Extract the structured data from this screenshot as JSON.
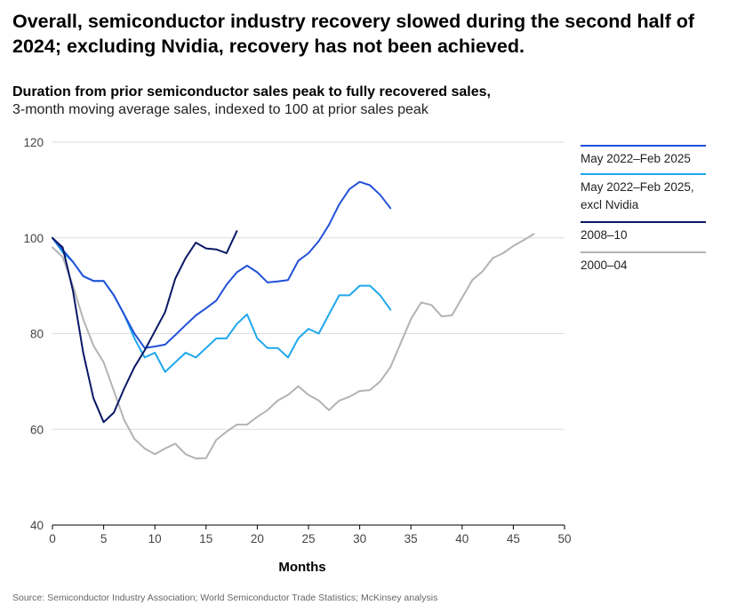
{
  "title": "Overall, semiconductor industry recovery slowed during the second half of 2024; excluding Nvidia, recovery has not been achieved.",
  "subtitle_bold": "Duration from prior semiconductor sales peak to fully recovered sales,",
  "subtitle_normal": "3-month moving average sales, indexed to 100 at prior sales peak",
  "source": "Source: Semiconductor Industry Association; World Semiconductor Trade Statistics; McKinsey analysis",
  "chart_data": {
    "type": "line",
    "title": "Overall, semiconductor industry recovery slowed during the second half of 2024; excluding Nvidia, recovery has not been achieved.",
    "xlabel": "Months",
    "ylabel": "",
    "xlim": [
      0,
      50
    ],
    "ylim": [
      40,
      120
    ],
    "x_ticks": [
      0,
      5,
      10,
      15,
      20,
      25,
      30,
      35,
      40,
      45,
      50
    ],
    "y_ticks": [
      40,
      60,
      80,
      100,
      120
    ],
    "grid": "horizontal",
    "legend_position": "right",
    "series": [
      {
        "name": "May 2022–Feb 2025",
        "color": "#2251d8",
        "x": [
          0,
          1,
          2,
          3,
          4,
          5,
          6,
          7,
          8,
          9,
          10,
          11,
          12,
          13,
          14,
          15,
          16,
          17,
          18,
          19,
          20,
          21,
          22,
          23,
          24,
          25,
          26,
          27,
          28,
          29,
          30,
          31,
          32,
          33
        ],
        "values": [
          100,
          97.5,
          95,
          92,
          91,
          91,
          88,
          84,
          80,
          77,
          77.3,
          77.7,
          79.7,
          81.8,
          83.8,
          85.3,
          86.9,
          90.2,
          92.8,
          94.2,
          92.8,
          90.7,
          90.9,
          91.2,
          95.2,
          96.8,
          99.3,
          102.7,
          107,
          110.2,
          111.7,
          111,
          109,
          106.2
        ]
      },
      {
        "name": "May 2022–Feb 2025, excl Nvidia",
        "color": "#1fa7ee",
        "x": [
          0,
          1,
          2,
          3,
          4,
          5,
          6,
          7,
          8,
          9,
          10,
          11,
          12,
          13,
          14,
          15,
          16,
          17,
          18,
          19,
          20,
          21,
          22,
          23,
          24,
          25,
          26,
          27,
          28,
          29,
          30,
          31,
          32,
          33
        ],
        "values": [
          100,
          97,
          95,
          92,
          91,
          91,
          88,
          84,
          79,
          75,
          76,
          72,
          74,
          76,
          75,
          77,
          79,
          79,
          82,
          84,
          79,
          77,
          77,
          75,
          79,
          81,
          80,
          84,
          88,
          88,
          90,
          90,
          88,
          85
        ]
      },
      {
        "name": "2008–10",
        "color": "#0a1866",
        "x": [
          0,
          1,
          2,
          3,
          4,
          5,
          6,
          7,
          8,
          9,
          10,
          11,
          12,
          13,
          14,
          15,
          16,
          17,
          18
        ],
        "values": [
          100,
          98,
          89,
          76,
          66.5,
          61.5,
          63.5,
          68.5,
          73,
          76.5,
          80.5,
          84.5,
          91.5,
          95.8,
          99,
          97.8,
          97.6,
          96.8,
          101.4
        ]
      },
      {
        "name": "2000–04",
        "color": "#b3b3b3",
        "x": [
          0,
          1,
          2,
          3,
          4,
          5,
          6,
          7,
          8,
          9,
          10,
          11,
          12,
          13,
          14,
          15,
          16,
          17,
          18,
          19,
          20,
          21,
          22,
          23,
          24,
          25,
          26,
          27,
          28,
          29,
          30,
          31,
          32,
          33,
          34,
          35,
          36,
          37,
          38,
          39,
          40,
          41,
          42,
          43,
          44,
          45,
          46,
          47
        ],
        "values": [
          98,
          96,
          90,
          83,
          77.5,
          74,
          68,
          62,
          58,
          56,
          54.8,
          56,
          57,
          54.8,
          53.9,
          54,
          57.8,
          59.5,
          61,
          61,
          62.6,
          64,
          66,
          67.2,
          69,
          67.2,
          66,
          64,
          66,
          66.8,
          68,
          68.2,
          70,
          73,
          78,
          83,
          86.5,
          86,
          83.6,
          83.8,
          87.5,
          91.2,
          93,
          95.8,
          96.8,
          98.3,
          99.5,
          100.8
        ]
      }
    ]
  }
}
